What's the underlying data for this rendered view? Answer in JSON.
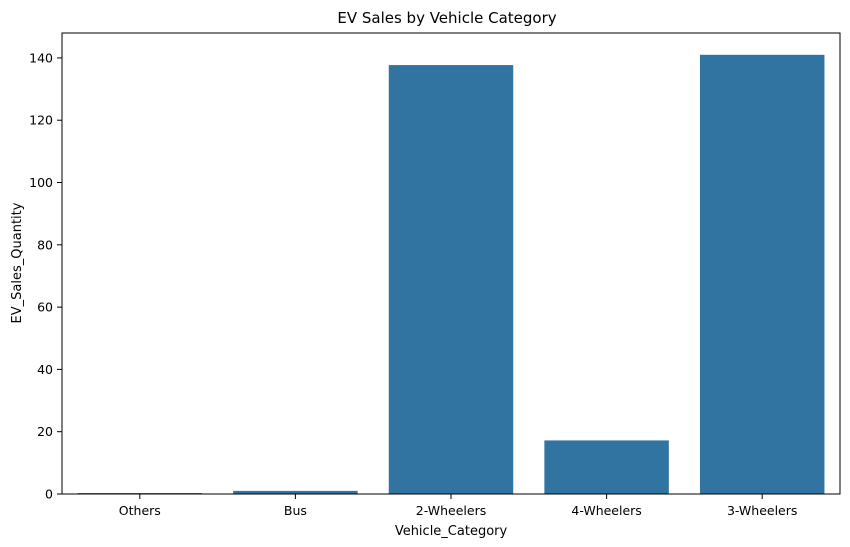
{
  "chart_data": {
    "type": "bar",
    "title": "EV Sales by Vehicle Category",
    "xlabel": "Vehicle_Category",
    "ylabel": "EV_Sales_Quantity",
    "categories": [
      "Others",
      "Bus",
      "2-Wheelers",
      "4-Wheelers",
      "3-Wheelers"
    ],
    "values": [
      0.3,
      1.0,
      137.7,
      17.2,
      141.0
    ],
    "ylim": [
      0,
      148
    ],
    "yticks": [
      0,
      20,
      40,
      60,
      80,
      100,
      120,
      140
    ],
    "grid": false,
    "bar_color": "#3274a1"
  }
}
